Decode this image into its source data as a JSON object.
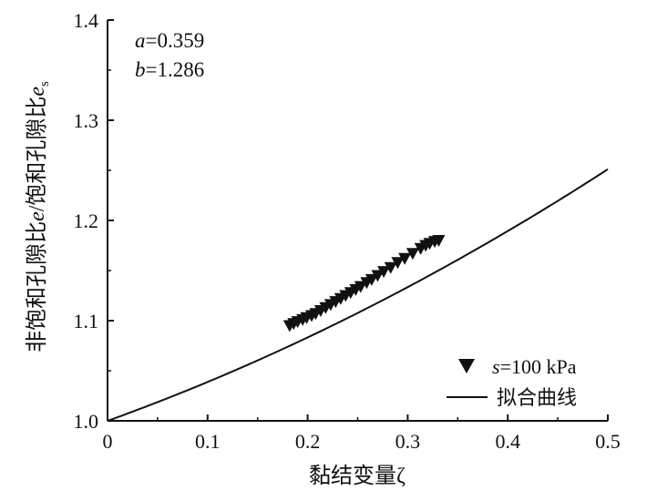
{
  "chart_data": {
    "type": "scatter",
    "xlabel": "黏结变量ζ",
    "ylabel": "非饱和孔隙比e/饱和孔隙比e",
    "ylabel_subscript": "s",
    "xlim": [
      0,
      0.5
    ],
    "ylim": [
      1.0,
      1.4
    ],
    "x_ticks": [
      0,
      0.1,
      0.2,
      0.3,
      0.4,
      0.5
    ],
    "x_tick_labels": [
      "0",
      "0.1",
      "0.2",
      "0.3",
      "0.4",
      "0.5"
    ],
    "y_ticks": [
      1.0,
      1.1,
      1.2,
      1.3,
      1.4
    ],
    "y_tick_labels": [
      "1.0",
      "1.1",
      "1.2",
      "1.3",
      "1.4"
    ],
    "grid": false,
    "legend_position": "bottom-right",
    "annotations": [
      {
        "var": "a",
        "text": "=0.359"
      },
      {
        "var": "b",
        "text": "=1.286"
      }
    ],
    "params": {
      "a": 0.359,
      "b": 1.286
    },
    "series": [
      {
        "name_var": "s",
        "name_rest": "=100 kPa",
        "marker": "triangle-down",
        "points": [
          [
            0.182,
            1.095
          ],
          [
            0.186,
            1.097
          ],
          [
            0.19,
            1.099
          ],
          [
            0.195,
            1.101
          ],
          [
            0.199,
            1.103
          ],
          [
            0.204,
            1.105
          ],
          [
            0.208,
            1.107
          ],
          [
            0.213,
            1.11
          ],
          [
            0.218,
            1.113
          ],
          [
            0.223,
            1.116
          ],
          [
            0.228,
            1.119
          ],
          [
            0.233,
            1.122
          ],
          [
            0.238,
            1.125
          ],
          [
            0.243,
            1.128
          ],
          [
            0.248,
            1.131
          ],
          [
            0.253,
            1.134
          ],
          [
            0.259,
            1.138
          ],
          [
            0.264,
            1.141
          ],
          [
            0.27,
            1.145
          ],
          [
            0.276,
            1.149
          ],
          [
            0.283,
            1.153
          ],
          [
            0.29,
            1.158
          ],
          [
            0.297,
            1.162
          ],
          [
            0.305,
            1.167
          ],
          [
            0.313,
            1.172
          ],
          [
            0.318,
            1.175
          ],
          [
            0.322,
            1.177
          ],
          [
            0.327,
            1.179
          ],
          [
            0.331,
            1.18
          ]
        ]
      },
      {
        "name": "拟合曲线",
        "line": "solid"
      }
    ]
  }
}
